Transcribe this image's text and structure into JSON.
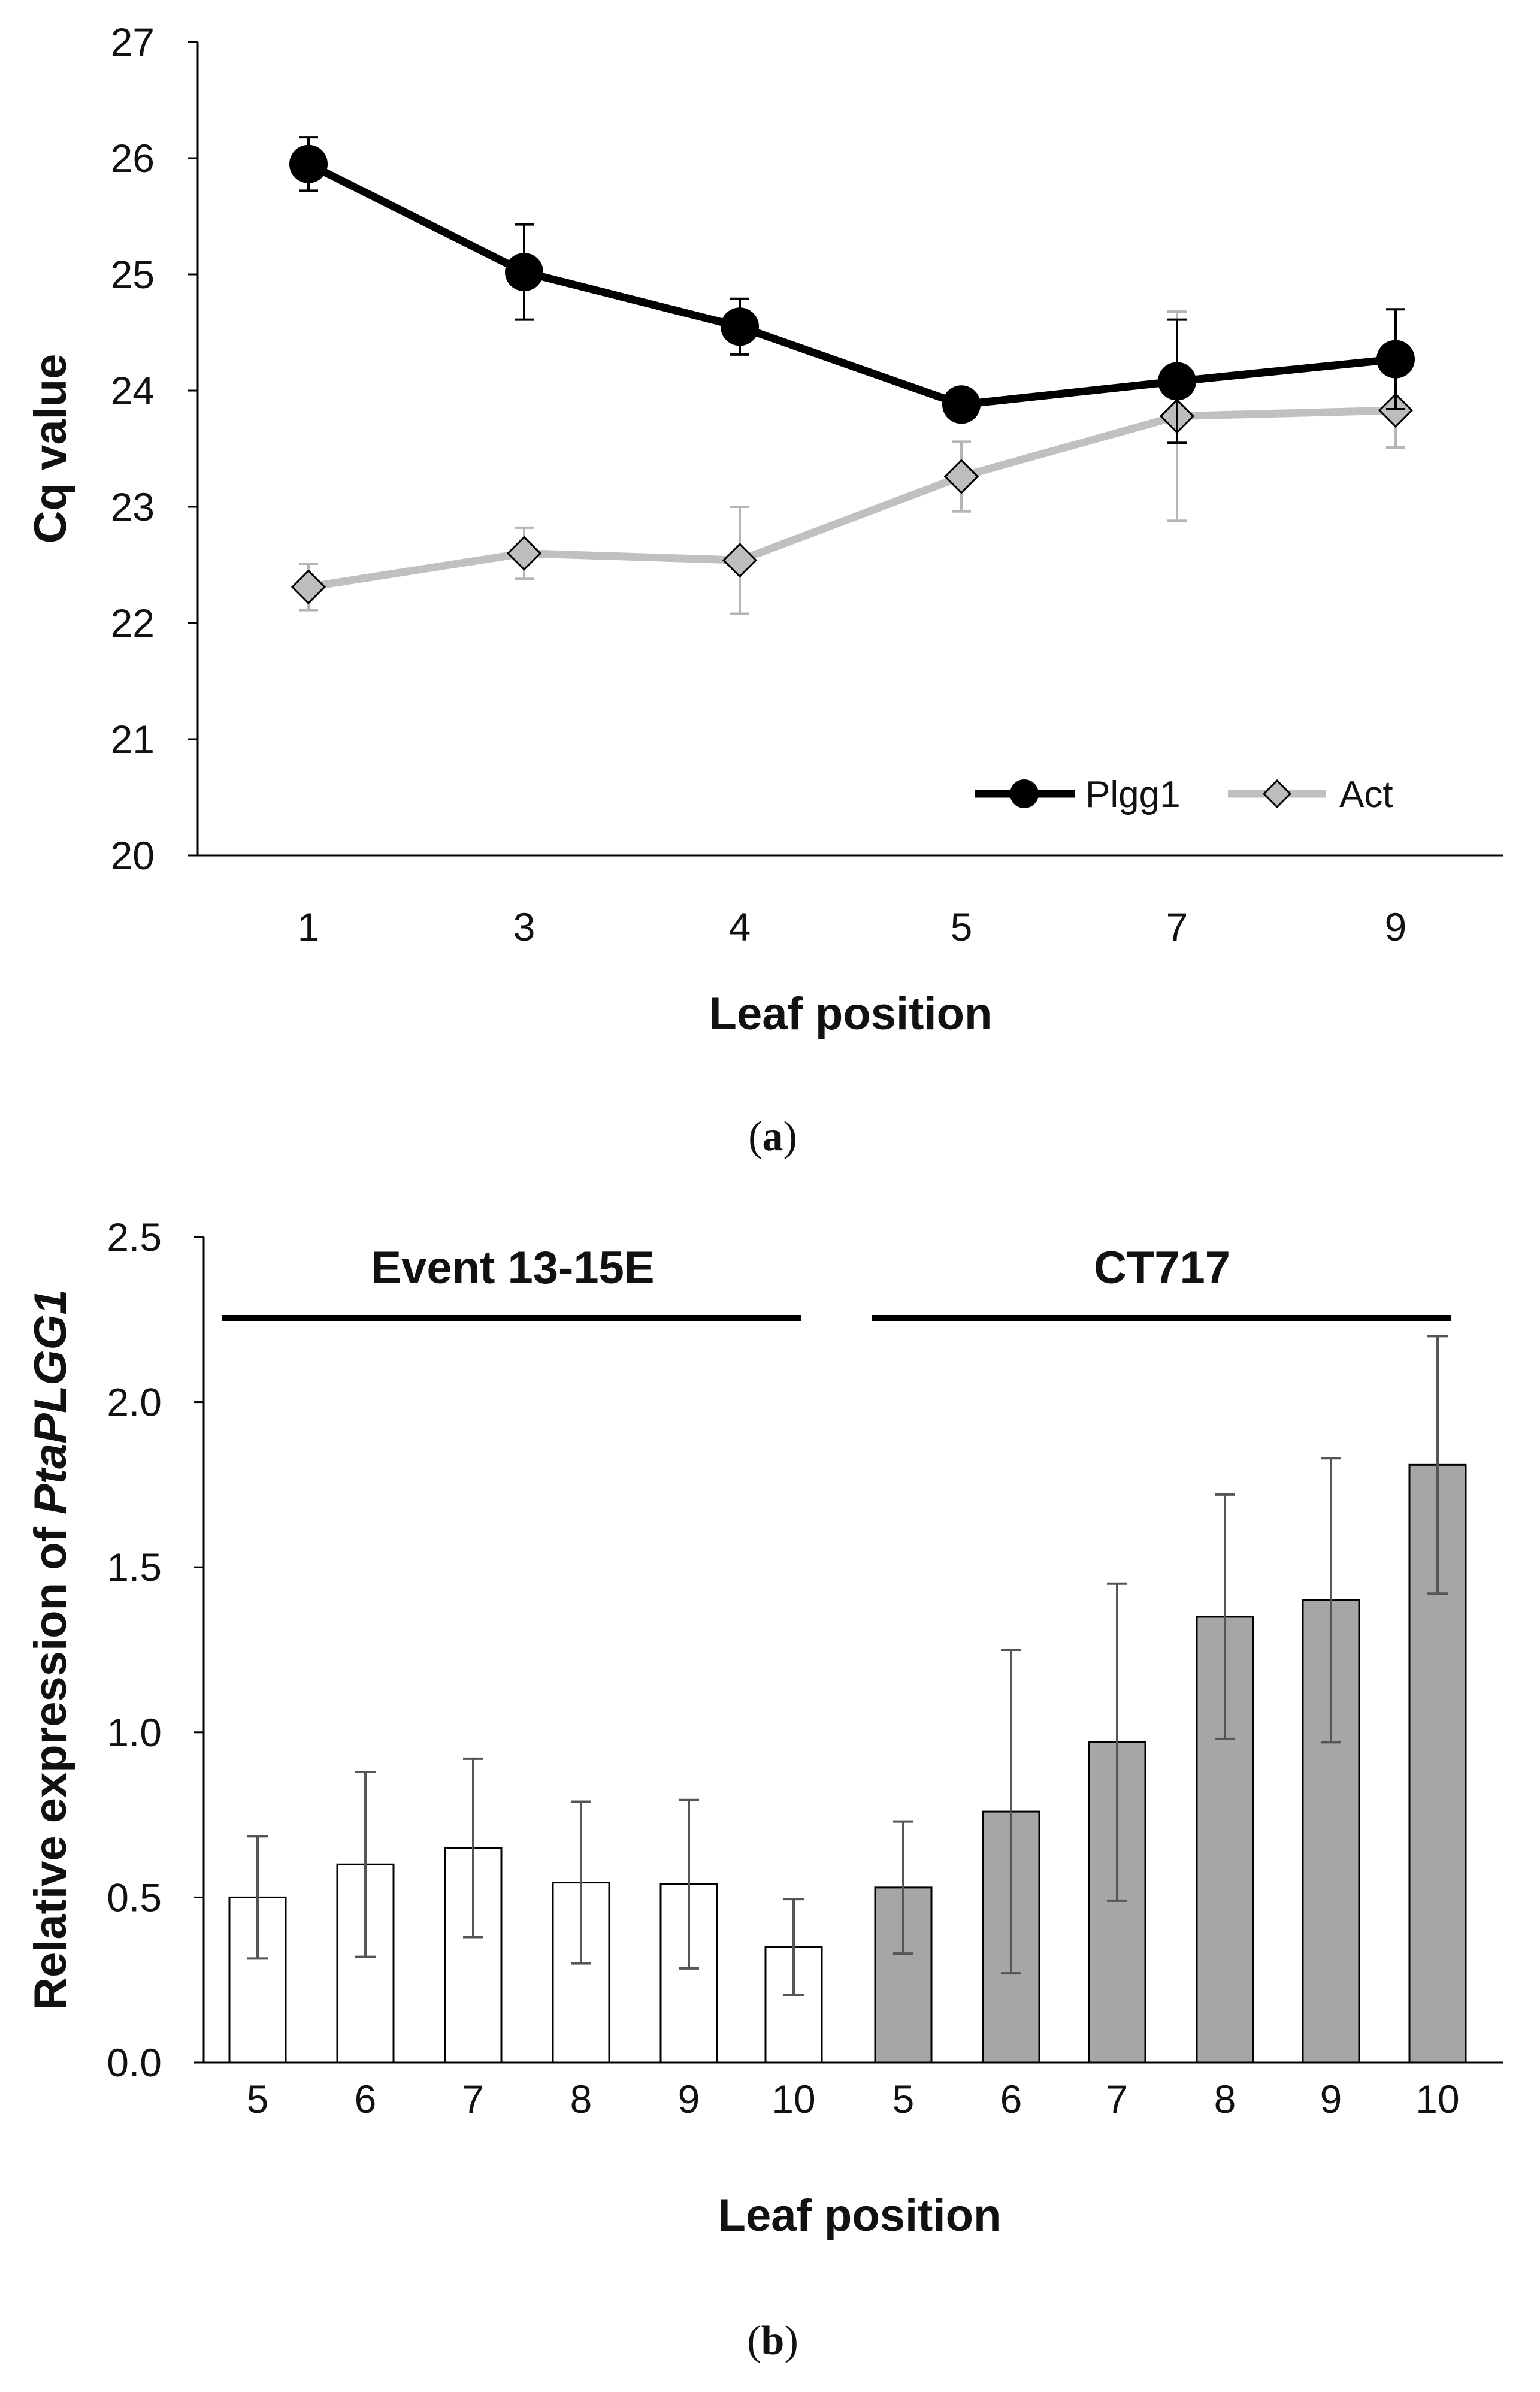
{
  "chart_data": [
    {
      "type": "line",
      "panel_label": "a",
      "xlabel": "Leaf position",
      "ylabel": "Cq value",
      "categories": [
        "1",
        "3",
        "4",
        "5",
        "7",
        "9"
      ],
      "ylim": [
        20,
        27
      ],
      "yticks": [
        "20",
        "21",
        "22",
        "23",
        "24",
        "25",
        "26",
        "27"
      ],
      "legend_position": "bottom-right",
      "series": [
        {
          "name": "Plgg1",
          "color": "#000000",
          "marker": "circle",
          "values": [
            25.95,
            25.02,
            24.55,
            23.88,
            24.08,
            24.27
          ],
          "errors": [
            0.23,
            0.41,
            0.24,
            0.0,
            0.53,
            0.43
          ]
        },
        {
          "name": "Act",
          "color": "#c0c0c0",
          "marker_fill": "#bdbdbd",
          "marker": "diamond",
          "values": [
            22.31,
            22.6,
            22.54,
            23.26,
            23.78,
            23.83
          ],
          "errors": [
            0.2,
            0.22,
            0.46,
            0.3,
            0.9,
            0.32
          ]
        }
      ]
    },
    {
      "type": "bar",
      "panel_label": "b",
      "xlabel": "Leaf position",
      "ylabel_prefix": "Relative expression of ",
      "ylabel_italic": "PtaPLGG1",
      "ylim": [
        0,
        2.5
      ],
      "yticks": [
        "0.0",
        "0.5",
        "1.0",
        "1.5",
        "2.0",
        "2.5"
      ],
      "groups": [
        {
          "name": "Event 13-15E",
          "fill": "#ffffff",
          "categories": [
            "5",
            "6",
            "7",
            "8",
            "9",
            "10"
          ],
          "values": [
            0.5,
            0.6,
            0.65,
            0.545,
            0.54,
            0.35
          ],
          "errors": [
            0.185,
            0.28,
            0.27,
            0.245,
            0.255,
            0.145
          ]
        },
        {
          "name": "CT717",
          "fill": "#a6a6a6",
          "categories": [
            "5",
            "6",
            "7",
            "8",
            "9",
            "10"
          ],
          "values": [
            0.53,
            0.76,
            0.97,
            1.35,
            1.4,
            1.81
          ],
          "errors": [
            0.2,
            0.49,
            0.48,
            0.37,
            0.43,
            0.39
          ]
        }
      ]
    }
  ]
}
